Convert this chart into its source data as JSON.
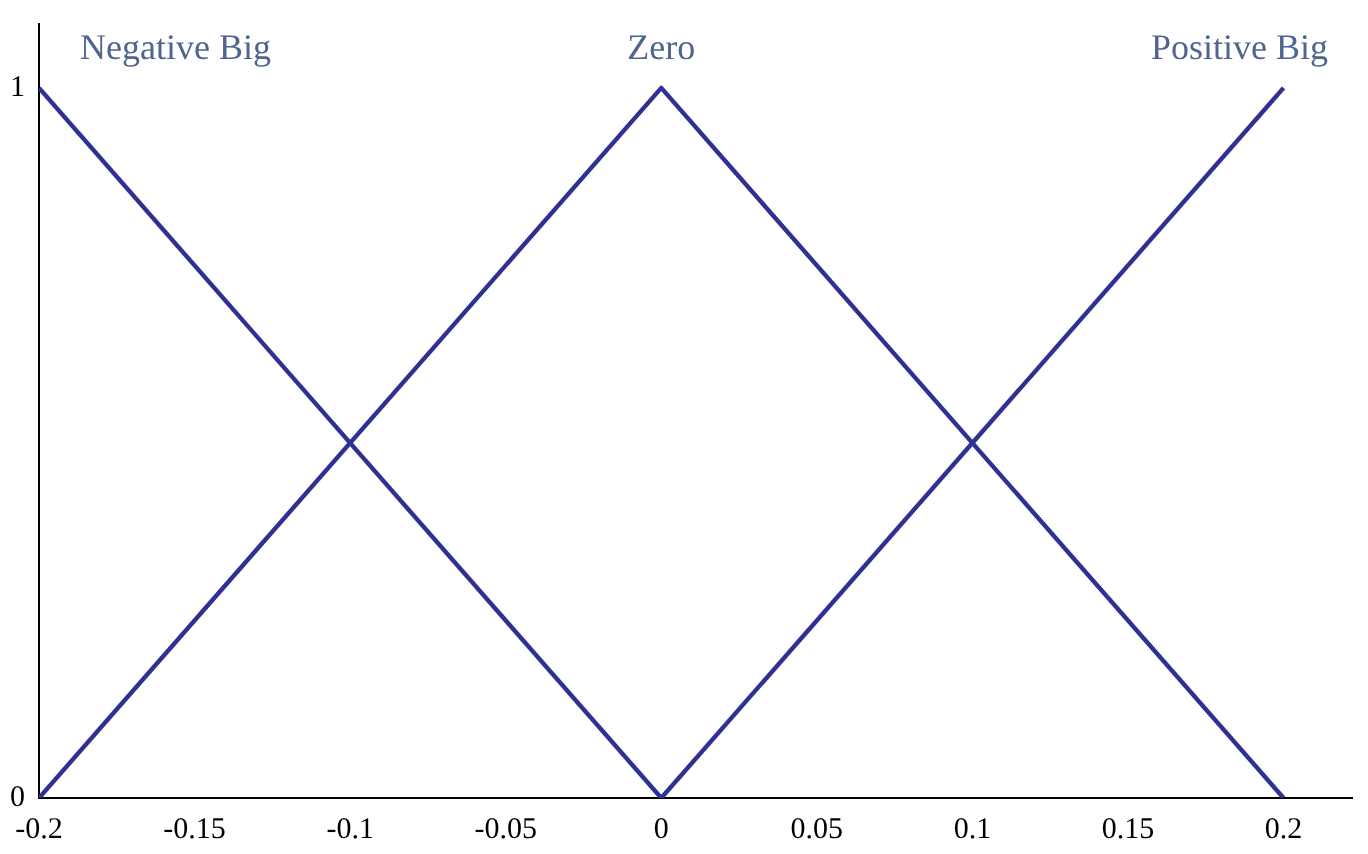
{
  "chart_data": {
    "type": "line",
    "xlim": [
      -0.2,
      0.222
    ],
    "ylim": [
      0,
      1.09
    ],
    "xticks": [
      -0.2,
      -0.15,
      -0.1,
      -0.05,
      0,
      0.05,
      0.1,
      0.15,
      0.2
    ],
    "yticks": [
      0,
      1
    ],
    "grid": false,
    "legend": false,
    "marker": "none",
    "line_style": "solid",
    "series": [
      {
        "name": "Negative Big",
        "color": "#2e3192",
        "x": [
          -0.2,
          0
        ],
        "values": [
          1,
          0
        ]
      },
      {
        "name": "Zero",
        "color": "#2e3192",
        "x": [
          -0.2,
          0,
          0.2
        ],
        "values": [
          0,
          1,
          0
        ]
      },
      {
        "name": "Positive Big",
        "color": "#2e3192",
        "x": [
          0,
          0.2
        ],
        "values": [
          0,
          1
        ]
      }
    ]
  }
}
